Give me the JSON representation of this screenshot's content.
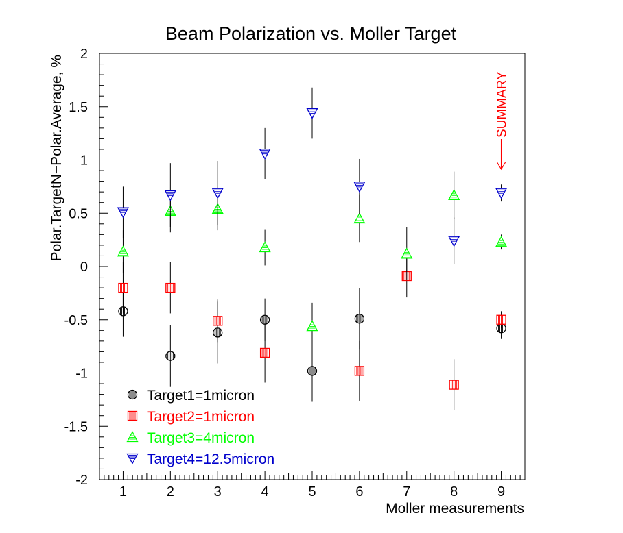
{
  "chart_data": {
    "type": "scatter",
    "title": "Beam Polarization vs. Moller Target",
    "xlabel": "Moller measurements",
    "ylabel": "Polar.TargetN−Polar.Average, %",
    "xlim": [
      0.5,
      9.5
    ],
    "ylim": [
      -2,
      2
    ],
    "x_ticks": [
      1,
      2,
      3,
      4,
      5,
      6,
      7,
      8,
      9
    ],
    "y_ticks": [
      -2,
      -1.5,
      -1,
      -0.5,
      0,
      0.5,
      1,
      1.5,
      2
    ],
    "y_tick_labels": [
      "-2",
      "-1.5",
      "-1",
      "-0.5",
      "0",
      "0.5",
      "1",
      "1.5",
      "2"
    ],
    "grid": false,
    "legend_position": "bottom-left",
    "series": [
      {
        "name": "Target1=1micron",
        "color": "#000000",
        "marker": "circle",
        "points": [
          {
            "x": 1,
            "y": -0.42,
            "err": 0.24
          },
          {
            "x": 2,
            "y": -0.84,
            "err": 0.29
          },
          {
            "x": 3,
            "y": -0.62,
            "err": 0.29
          },
          {
            "x": 4,
            "y": -0.5,
            "err": 0.2
          },
          {
            "x": 5,
            "y": -0.98,
            "err": 0.29
          },
          {
            "x": 6,
            "y": -0.49,
            "err": 0.29
          },
          {
            "x": 9,
            "y": -0.58,
            "err": 0.1
          }
        ]
      },
      {
        "name": "Target2=1micron",
        "color": "#ff0000",
        "marker": "square",
        "points": [
          {
            "x": 1,
            "y": -0.2,
            "err": 0.24
          },
          {
            "x": 2,
            "y": -0.2,
            "err": 0.24
          },
          {
            "x": 3,
            "y": -0.51,
            "err": 0.2
          },
          {
            "x": 4,
            "y": -0.81,
            "err": 0.28
          },
          {
            "x": 6,
            "y": -0.98,
            "err": 0.28
          },
          {
            "x": 7,
            "y": -0.09,
            "err": 0.2
          },
          {
            "x": 8,
            "y": -1.11,
            "err": 0.24
          },
          {
            "x": 9,
            "y": -0.5,
            "err": 0.08
          }
        ]
      },
      {
        "name": "Target3=4micron",
        "color": "#00ff00",
        "marker": "triangle-up",
        "points": [
          {
            "x": 1,
            "y": 0.14,
            "err": 0.2
          },
          {
            "x": 2,
            "y": 0.52,
            "err": 0.2
          },
          {
            "x": 3,
            "y": 0.54,
            "err": 0.2
          },
          {
            "x": 4,
            "y": 0.18,
            "err": 0.17
          },
          {
            "x": 5,
            "y": -0.56,
            "err": 0.22
          },
          {
            "x": 6,
            "y": 0.45,
            "err": 0.22
          },
          {
            "x": 7,
            "y": 0.12,
            "err": 0.25
          },
          {
            "x": 8,
            "y": 0.67,
            "err": 0.22
          },
          {
            "x": 9,
            "y": 0.23,
            "err": 0.07
          }
        ]
      },
      {
        "name": "Target4=12.5micron",
        "color": "#0000cc",
        "marker": "triangle-down",
        "points": [
          {
            "x": 1,
            "y": 0.51,
            "err": 0.24
          },
          {
            "x": 2,
            "y": 0.67,
            "err": 0.3
          },
          {
            "x": 3,
            "y": 0.69,
            "err": 0.3
          },
          {
            "x": 4,
            "y": 1.06,
            "err": 0.24
          },
          {
            "x": 5,
            "y": 1.44,
            "err": 0.24
          },
          {
            "x": 6,
            "y": 0.75,
            "err": 0.26
          },
          {
            "x": 8,
            "y": 0.24,
            "err": 0.22
          },
          {
            "x": 9,
            "y": 0.69,
            "err": 0.08
          }
        ]
      }
    ],
    "annotation": {
      "text": "SUMMARY",
      "x": 9,
      "color": "#ff0000"
    }
  }
}
